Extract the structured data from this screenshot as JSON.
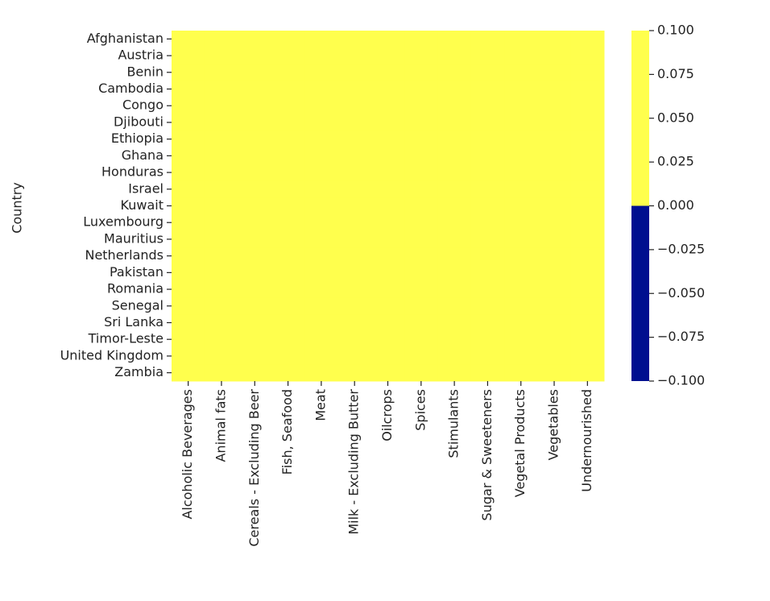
{
  "chart_data": {
    "type": "heatmap",
    "y_label": "Country",
    "rows": [
      "Afghanistan",
      "Austria",
      "Benin",
      "Cambodia",
      "Congo",
      "Djibouti",
      "Ethiopia",
      "Ghana",
      "Honduras",
      "Israel",
      "Kuwait",
      "Luxembourg",
      "Mauritius",
      "Netherlands",
      "Pakistan",
      "Romania",
      "Senegal",
      "Sri Lanka",
      "Timor-Leste",
      "United Kingdom",
      "Zambia"
    ],
    "columns": [
      "Alcoholic Beverages",
      "Animal fats",
      "Cereals - Excluding Beer",
      "Fish, Seafood",
      "Meat",
      "Milk - Excluding Butter",
      "Oilcrops",
      "Spices",
      "Stimulants",
      "Sugar & Sweeteners",
      "Vegetal Products",
      "Vegetables",
      "Undernourished"
    ],
    "values": [
      [
        0,
        0,
        0,
        0,
        0,
        0,
        0,
        0,
        0,
        0,
        0,
        0,
        0
      ],
      [
        0,
        0,
        0,
        0,
        0,
        0,
        0,
        0,
        0,
        0,
        0,
        0,
        0
      ],
      [
        0,
        0,
        0,
        0,
        0,
        0,
        0,
        0,
        0,
        0,
        0,
        0,
        0
      ],
      [
        0,
        0,
        0,
        0,
        0,
        0,
        0,
        0,
        0,
        0,
        0,
        0,
        0
      ],
      [
        0,
        0,
        0,
        0,
        0,
        0,
        0,
        0,
        0,
        0,
        0,
        0,
        0
      ],
      [
        0,
        0,
        0,
        0,
        0,
        0,
        0,
        0,
        0,
        0,
        0,
        0,
        0
      ],
      [
        0,
        0,
        0,
        0,
        0,
        0,
        0,
        0,
        0,
        0,
        0,
        0,
        0
      ],
      [
        0,
        0,
        0,
        0,
        0,
        0,
        0,
        0,
        0,
        0,
        0,
        0,
        0
      ],
      [
        0,
        0,
        0,
        0,
        0,
        0,
        0,
        0,
        0,
        0,
        0,
        0,
        0
      ],
      [
        0,
        0,
        0,
        0,
        0,
        0,
        0,
        0,
        0,
        0,
        0,
        0,
        0
      ],
      [
        0,
        0,
        0,
        0,
        0,
        0,
        0,
        0,
        0,
        0,
        0,
        0,
        0
      ],
      [
        0,
        0,
        0,
        0,
        0,
        0,
        0,
        0,
        0,
        0,
        0,
        0,
        0
      ],
      [
        0,
        0,
        0,
        0,
        0,
        0,
        0,
        0,
        0,
        0,
        0,
        0,
        0
      ],
      [
        0,
        0,
        0,
        0,
        0,
        0,
        0,
        0,
        0,
        0,
        0,
        0,
        0
      ],
      [
        0,
        0,
        0,
        0,
        0,
        0,
        0,
        0,
        0,
        0,
        0,
        0,
        0
      ],
      [
        0,
        0,
        0,
        0,
        0,
        0,
        0,
        0,
        0,
        0,
        0,
        0,
        0
      ],
      [
        0,
        0,
        0,
        0,
        0,
        0,
        0,
        0,
        0,
        0,
        0,
        0,
        0
      ],
      [
        0,
        0,
        0,
        0,
        0,
        0,
        0,
        0,
        0,
        0,
        0,
        0,
        0
      ],
      [
        0,
        0,
        0,
        0,
        0,
        0,
        0,
        0,
        0,
        0,
        0,
        0,
        0
      ],
      [
        0,
        0,
        0,
        0,
        0,
        0,
        0,
        0,
        0,
        0,
        0,
        0,
        0
      ],
      [
        0,
        0,
        0,
        0,
        0,
        0,
        0,
        0,
        0,
        0,
        0,
        0,
        0
      ]
    ],
    "colors": [
      "#000f8f",
      "#ffff4d"
    ],
    "zlim": [
      -0.1,
      0.1
    ],
    "zticks": [
      {
        "value": 0.1,
        "label": "0.100"
      },
      {
        "value": 0.075,
        "label": "0.075"
      },
      {
        "value": 0.05,
        "label": "0.050"
      },
      {
        "value": 0.025,
        "label": "0.025"
      },
      {
        "value": 0,
        "label": "0.000"
      },
      {
        "value": -0.025,
        "label": "−0.025"
      },
      {
        "value": -0.05,
        "label": "−0.050"
      },
      {
        "value": -0.075,
        "label": "−0.075"
      },
      {
        "value": -0.1,
        "label": "−0.100"
      }
    ]
  }
}
